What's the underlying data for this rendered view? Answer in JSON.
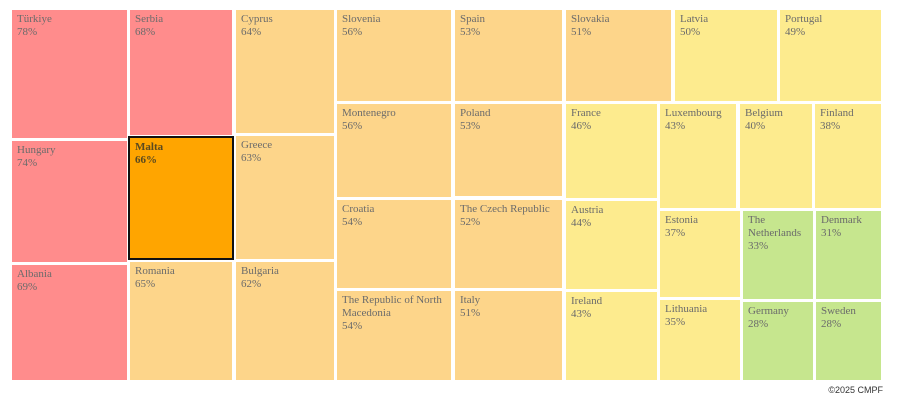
{
  "chart_data": {
    "type": "treemap",
    "highlighted": "Malta",
    "colors": {
      "red": "#ff8c8c",
      "orange": "#fdd58a",
      "light_orange": "#fdd98e",
      "yellow": "#fdeb8e",
      "green": "#c6e68e",
      "highlight": "#ffa500"
    },
    "items": [
      {
        "name": "Türkiye",
        "value": "78%",
        "color": "red"
      },
      {
        "name": "Serbia",
        "value": "68%",
        "color": "red"
      },
      {
        "name": "Cyprus",
        "value": "64%",
        "color": "orange"
      },
      {
        "name": "Slovenia",
        "value": "56%",
        "color": "orange"
      },
      {
        "name": "Spain",
        "value": "53%",
        "color": "orange"
      },
      {
        "name": "Slovakia",
        "value": "51%",
        "color": "orange"
      },
      {
        "name": "Latvia",
        "value": "50%",
        "color": "yellow"
      },
      {
        "name": "Portugal",
        "value": "49%",
        "color": "yellow"
      },
      {
        "name": "Hungary",
        "value": "74%",
        "color": "red"
      },
      {
        "name": "Malta",
        "value": "66%",
        "color": "highlight"
      },
      {
        "name": "Greece",
        "value": "63%",
        "color": "orange"
      },
      {
        "name": "Montenegro",
        "value": "56%",
        "color": "orange"
      },
      {
        "name": "Poland",
        "value": "53%",
        "color": "orange"
      },
      {
        "name": "France",
        "value": "46%",
        "color": "yellow"
      },
      {
        "name": "Luxembourg",
        "value": "43%",
        "color": "yellow"
      },
      {
        "name": "Belgium",
        "value": "40%",
        "color": "yellow"
      },
      {
        "name": "Finland",
        "value": "38%",
        "color": "yellow"
      },
      {
        "name": "Croatia",
        "value": "54%",
        "color": "orange"
      },
      {
        "name": "The Czech Republic",
        "value": "52%",
        "color": "orange"
      },
      {
        "name": "Austria",
        "value": "44%",
        "color": "yellow"
      },
      {
        "name": "Estonia",
        "value": "37%",
        "color": "yellow"
      },
      {
        "name": "The Netherlands",
        "value": "33%",
        "color": "green"
      },
      {
        "name": "Denmark",
        "value": "31%",
        "color": "green"
      },
      {
        "name": "Albania",
        "value": "69%",
        "color": "red"
      },
      {
        "name": "Romania",
        "value": "65%",
        "color": "orange"
      },
      {
        "name": "Bulgaria",
        "value": "62%",
        "color": "orange"
      },
      {
        "name": "The Republic of North Macedonia",
        "value": "54%",
        "color": "orange"
      },
      {
        "name": "Italy",
        "value": "51%",
        "color": "orange"
      },
      {
        "name": "Ireland",
        "value": "43%",
        "color": "yellow"
      },
      {
        "name": "Lithuania",
        "value": "35%",
        "color": "yellow"
      },
      {
        "name": "Germany",
        "value": "28%",
        "color": "green"
      },
      {
        "name": "Sweden",
        "value": "28%",
        "color": "green"
      }
    ]
  },
  "credit": "©2025 CMPF"
}
